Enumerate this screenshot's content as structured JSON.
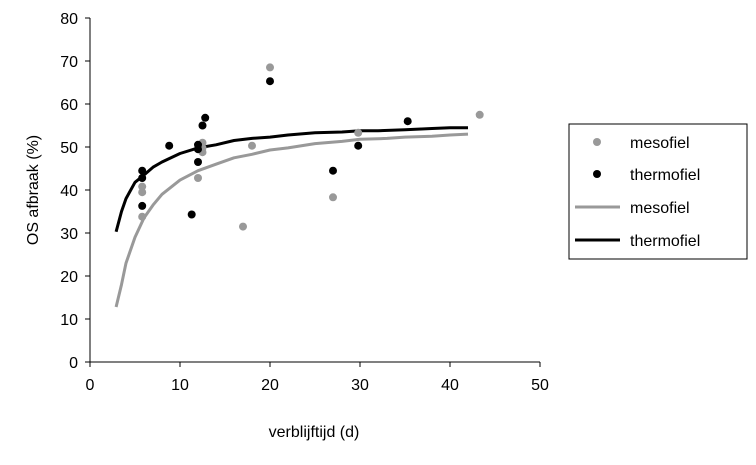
{
  "chart_data": {
    "type": "scatter",
    "xlabel": "verblijftijd (d)",
    "ylabel": "OS afbraak (%)",
    "xlim": [
      0,
      50
    ],
    "ylim": [
      0,
      80
    ],
    "x_ticks": [
      "0",
      "10",
      "20",
      "30",
      "40",
      "50"
    ],
    "y_ticks": [
      "0",
      "10",
      "20",
      "30",
      "40",
      "50",
      "60",
      "70",
      "80"
    ],
    "grid": false,
    "legend_position": "right",
    "series": [
      {
        "name": "mesofiel",
        "kind": "scatter",
        "color": "#999999",
        "points": [
          [
            5.8,
            33.8
          ],
          [
            5.8,
            39.5
          ],
          [
            5.8,
            40.8
          ],
          [
            12,
            42.8
          ],
          [
            12.5,
            49.8
          ],
          [
            12.5,
            51.0
          ],
          [
            12.5,
            48.8
          ],
          [
            17,
            31.5
          ],
          [
            18,
            50.3
          ],
          [
            20,
            68.5
          ],
          [
            27,
            38.3
          ],
          [
            29.8,
            53.3
          ],
          [
            43.3,
            57.5
          ]
        ]
      },
      {
        "name": "thermofiel",
        "kind": "scatter",
        "color": "#000000",
        "points": [
          [
            5.8,
            36.3
          ],
          [
            5.8,
            42.8
          ],
          [
            5.8,
            44.5
          ],
          [
            8.8,
            50.3
          ],
          [
            11.3,
            34.3
          ],
          [
            12,
            46.5
          ],
          [
            12,
            49.5
          ],
          [
            12,
            50.5
          ],
          [
            12.5,
            55.0
          ],
          [
            12.8,
            56.8
          ],
          [
            20,
            65.3
          ],
          [
            27,
            44.5
          ],
          [
            29.8,
            50.3
          ],
          [
            35.3,
            56.0
          ]
        ]
      },
      {
        "name": "mesofiel",
        "kind": "line",
        "color": "#999999",
        "points": [
          [
            2.9,
            12.8
          ],
          [
            3.5,
            18
          ],
          [
            4,
            23
          ],
          [
            5,
            29
          ],
          [
            6,
            33.5
          ],
          [
            7,
            36.5
          ],
          [
            8,
            39
          ],
          [
            10,
            42.3
          ],
          [
            12,
            44.5
          ],
          [
            14,
            46
          ],
          [
            16,
            47.5
          ],
          [
            18,
            48.3
          ],
          [
            20,
            49.3
          ],
          [
            22,
            49.8
          ],
          [
            25,
            50.8
          ],
          [
            28,
            51.3
          ],
          [
            30,
            51.8
          ],
          [
            33,
            52
          ],
          [
            35,
            52.3
          ],
          [
            38,
            52.5
          ],
          [
            40,
            52.8
          ],
          [
            42,
            53
          ]
        ]
      },
      {
        "name": "thermofiel",
        "kind": "line",
        "color": "#000000",
        "points": [
          [
            2.9,
            30.3
          ],
          [
            3.5,
            35
          ],
          [
            4,
            38
          ],
          [
            5,
            41.8
          ],
          [
            6,
            43.5
          ],
          [
            7,
            45.3
          ],
          [
            8,
            46.5
          ],
          [
            10,
            48.5
          ],
          [
            12,
            49.8
          ],
          [
            14,
            50.5
          ],
          [
            16,
            51.5
          ],
          [
            18,
            52
          ],
          [
            20,
            52.3
          ],
          [
            22,
            52.8
          ],
          [
            25,
            53.3
          ],
          [
            28,
            53.5
          ],
          [
            30,
            53.8
          ],
          [
            32,
            53.8
          ],
          [
            35,
            54
          ],
          [
            38,
            54.3
          ],
          [
            40,
            54.5
          ],
          [
            42,
            54.5
          ]
        ]
      }
    ]
  }
}
